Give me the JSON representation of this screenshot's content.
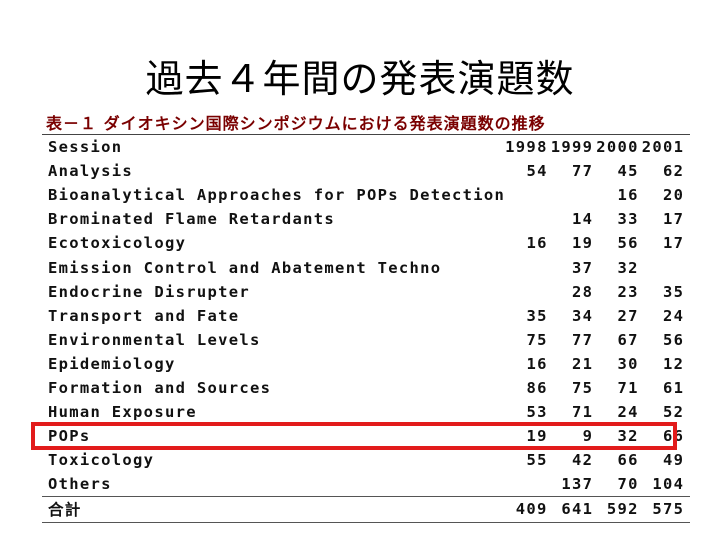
{
  "title": "過去４年間の発表演題数",
  "caption": "表－１ ダイオキシン国際シンポジウムにおける発表演題数の推移",
  "table": {
    "header": {
      "name": "Session",
      "y1998": "1998",
      "y1999": "1999",
      "y2000": "2000",
      "y2001": "2001"
    },
    "rows": [
      {
        "name": "Analysis",
        "y1998": "54",
        "y1999": "77",
        "y2000": "45",
        "y2001": "62"
      },
      {
        "name": "Bioanalytical Approaches for POPs Detection",
        "y1998": "",
        "y1999": "",
        "y2000": "16",
        "y2001": "20"
      },
      {
        "name": "Brominated Flame Retardants",
        "y1998": "",
        "y1999": "14",
        "y2000": "33",
        "y2001": "17"
      },
      {
        "name": "Ecotoxicology",
        "y1998": "16",
        "y1999": "19",
        "y2000": "56",
        "y2001": "17"
      },
      {
        "name": "Emission Control and Abatement Techno",
        "y1998": "",
        "y1999": "37",
        "y2000": "32",
        "y2001": ""
      },
      {
        "name": "Endocrine Disrupter",
        "y1998": "",
        "y1999": "28",
        "y2000": "23",
        "y2001": "35"
      },
      {
        "name": "Transport and Fate",
        "y1998": "35",
        "y1999": "34",
        "y2000": "27",
        "y2001": "24"
      },
      {
        "name": "Environmental Levels",
        "y1998": "75",
        "y1999": "77",
        "y2000": "67",
        "y2001": "56"
      },
      {
        "name": "Epidemiology",
        "y1998": "16",
        "y1999": "21",
        "y2000": "30",
        "y2001": "12"
      },
      {
        "name": "Formation and Sources",
        "y1998": "86",
        "y1999": "75",
        "y2000": "71",
        "y2001": "61"
      },
      {
        "name": "Human Exposure",
        "y1998": "53",
        "y1999": "71",
        "y2000": "24",
        "y2001": "52"
      },
      {
        "name": "POPs",
        "y1998": "19",
        "y1999": "9",
        "y2000": "32",
        "y2001": "66"
      },
      {
        "name": "Toxicology",
        "y1998": "55",
        "y1999": "42",
        "y2000": "66",
        "y2001": "49"
      },
      {
        "name": "Others",
        "y1998": "",
        "y1999": "137",
        "y2000": "70",
        "y2001": "104"
      }
    ],
    "total": {
      "name": "合計",
      "y1998": "409",
      "y1999": "641",
      "y2000": "592",
      "y2001": "575"
    }
  },
  "highlight": {
    "row": "POPs",
    "color": "#e21b1b"
  }
}
